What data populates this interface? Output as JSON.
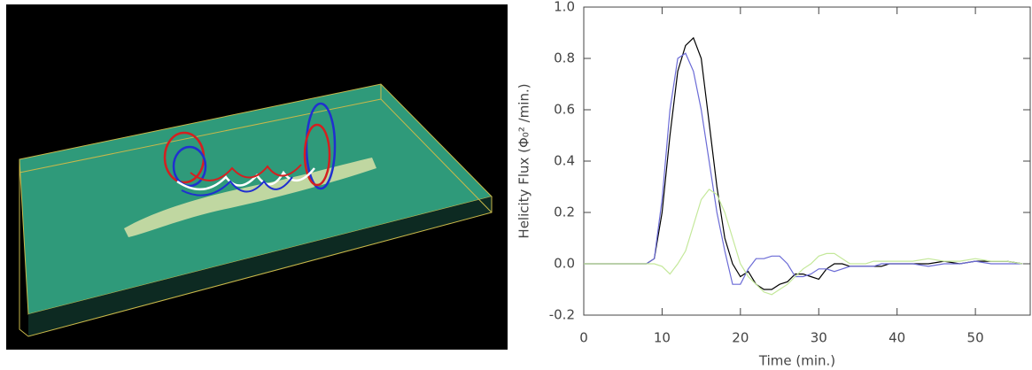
{
  "chart_data": {
    "type": "line",
    "xlabel": "Time (min.)",
    "ylabel": "Helicity Flux (Φ₀² /min.)",
    "x": [
      0,
      2,
      4,
      6,
      8,
      9,
      10,
      11,
      12,
      13,
      14,
      15,
      16,
      17,
      18,
      19,
      20,
      21,
      22,
      23,
      24,
      25,
      26,
      27,
      28,
      29,
      30,
      31,
      32,
      33,
      34,
      35,
      36,
      37,
      38,
      39,
      40,
      42,
      44,
      46,
      48,
      50,
      52,
      54,
      56
    ],
    "series": [
      {
        "color": "#000000",
        "values": [
          0,
          0,
          0,
          0,
          0,
          0.02,
          0.2,
          0.5,
          0.75,
          0.85,
          0.88,
          0.8,
          0.55,
          0.3,
          0.1,
          0.0,
          -0.05,
          -0.03,
          -0.08,
          -0.1,
          -0.1,
          -0.08,
          -0.07,
          -0.04,
          -0.04,
          -0.05,
          -0.06,
          -0.02,
          0.0,
          0.0,
          -0.01,
          -0.01,
          -0.01,
          -0.01,
          -0.01,
          0.0,
          0.0,
          0.0,
          0.0,
          0.01,
          0.0,
          0.01,
          0.01,
          0.01,
          0.0
        ]
      },
      {
        "color": "#6b6bd6",
        "values": [
          0,
          0,
          0,
          0,
          0,
          0.02,
          0.25,
          0.6,
          0.8,
          0.82,
          0.75,
          0.6,
          0.4,
          0.2,
          0.05,
          -0.08,
          -0.08,
          -0.02,
          0.02,
          0.02,
          0.03,
          0.03,
          0.0,
          -0.05,
          -0.05,
          -0.04,
          -0.02,
          -0.02,
          -0.03,
          -0.02,
          -0.01,
          -0.01,
          -0.01,
          -0.01,
          0.0,
          0.0,
          0.0,
          0.0,
          -0.01,
          0.0,
          0.0,
          0.01,
          0.0,
          0.0,
          0.0
        ]
      },
      {
        "color": "#c4e89a",
        "values": [
          0,
          0,
          0,
          0,
          0,
          0,
          -0.01,
          -0.04,
          0.0,
          0.05,
          0.15,
          0.25,
          0.29,
          0.27,
          0.2,
          0.1,
          0.0,
          -0.05,
          -0.08,
          -0.11,
          -0.12,
          -0.1,
          -0.08,
          -0.05,
          -0.02,
          0.0,
          0.03,
          0.04,
          0.04,
          0.02,
          0.0,
          0.0,
          0.0,
          0.01,
          0.01,
          0.01,
          0.01,
          0.01,
          0.02,
          0.01,
          0.01,
          0.02,
          0.01,
          0.01,
          0.0
        ]
      }
    ],
    "xlim": [
      0,
      57
    ],
    "xticks": [
      0,
      10,
      20,
      30,
      40,
      50
    ],
    "ylim": [
      -0.2,
      1.0
    ],
    "yticks": [
      -0.2,
      {
        "value": 0,
        "label": "0.0"
      },
      0.2,
      0.4,
      0.6,
      0.8,
      {
        "value": 1.0,
        "label": "1.0"
      }
    ]
  }
}
